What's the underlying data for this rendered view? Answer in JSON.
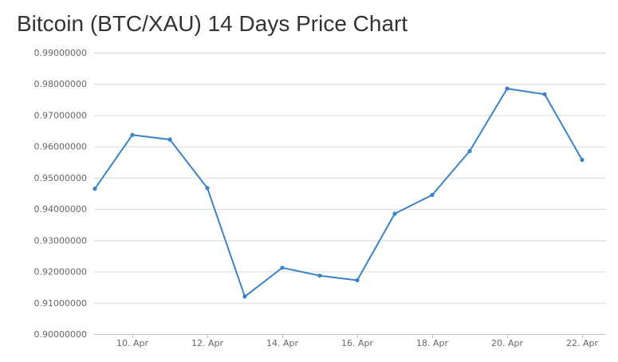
{
  "chart_data": {
    "type": "line",
    "title": "Bitcoin (BTC/XAU) 14 Days Price Chart",
    "xlabel": "",
    "ylabel": "",
    "x": [
      "9. Apr",
      "10. Apr",
      "11. Apr",
      "12. Apr",
      "13. Apr",
      "14. Apr",
      "15. Apr",
      "16. Apr",
      "17. Apr",
      "18. Apr",
      "19. Apr",
      "20. Apr",
      "21. Apr",
      "22. Apr"
    ],
    "x_tick_labels": [
      "10. Apr",
      "12. Apr",
      "14. Apr",
      "16. Apr",
      "18. Apr",
      "20. Apr",
      "22. Apr"
    ],
    "y_tick_labels": [
      "0.90000000",
      "0.91000000",
      "0.92000000",
      "0.93000000",
      "0.94000000",
      "0.95000000",
      "0.96000000",
      "0.97000000",
      "0.98000000",
      "0.99000000"
    ],
    "ylim": [
      0.9,
      0.99
    ],
    "grid": true,
    "series": [
      {
        "color": "#3a83c9",
        "values": [
          0.9465,
          0.9637,
          0.9622,
          0.9467,
          0.912,
          0.9212,
          0.9187,
          0.9172,
          0.9385,
          0.9445,
          0.9585,
          0.9785,
          0.9767,
          0.9557
        ]
      }
    ]
  }
}
